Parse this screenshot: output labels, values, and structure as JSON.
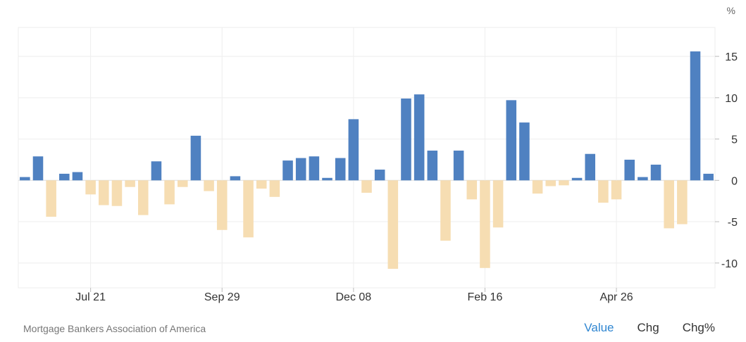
{
  "chart_data": {
    "type": "bar",
    "unit": "%",
    "ylim": [
      -13,
      18.5
    ],
    "yticks": [
      15,
      10,
      5,
      0,
      -5,
      -10
    ],
    "grid": true,
    "positive_color": "#4f81c1",
    "negative_color": "#f6ddb2",
    "xtick_labels": [
      {
        "label": "Jul 21",
        "index": 5
      },
      {
        "label": "Sep 29",
        "index": 15
      },
      {
        "label": "Dec 08",
        "index": 25
      },
      {
        "label": "Feb 16",
        "index": 35
      },
      {
        "label": "Apr 26",
        "index": 45
      }
    ],
    "values": [
      0.4,
      2.9,
      -4.4,
      0.8,
      1.0,
      -1.7,
      -3.0,
      -3.1,
      -0.8,
      -4.2,
      2.3,
      -2.9,
      -0.8,
      5.4,
      -1.3,
      -6.0,
      0.5,
      -6.9,
      -1.0,
      -2.0,
      2.4,
      2.7,
      2.9,
      0.3,
      2.7,
      7.4,
      -1.5,
      1.3,
      -10.7,
      9.9,
      10.4,
      3.6,
      -7.3,
      3.6,
      -2.3,
      -10.6,
      -5.7,
      9.7,
      7.0,
      -1.6,
      -0.7,
      -0.6,
      0.3,
      3.2,
      -2.7,
      -2.3,
      2.5,
      0.4,
      1.9,
      -5.8,
      -5.3,
      15.6,
      0.8
    ]
  },
  "footer": {
    "source": "Mortgage Bankers Association of America",
    "tabs": [
      {
        "label": "Value",
        "active": true
      },
      {
        "label": "Chg",
        "active": false
      },
      {
        "label": "Chg%",
        "active": false
      }
    ]
  }
}
